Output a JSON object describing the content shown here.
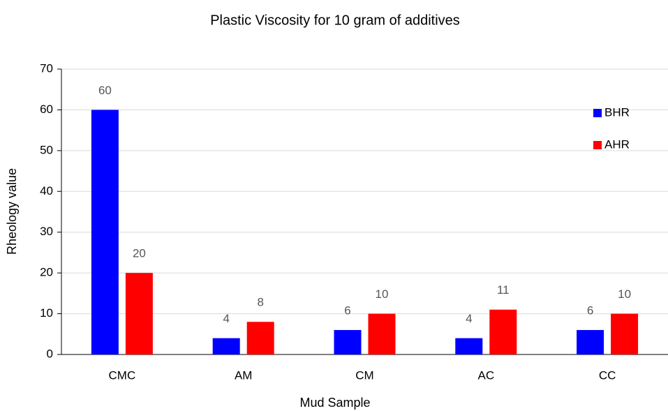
{
  "chart_data": {
    "type": "bar",
    "title": "Plastic Viscosity for 10 gram of additives",
    "x_label": "Mud Sample",
    "y_label": "Rheology value",
    "categories": [
      "CMC",
      "AM",
      "CM",
      "AC",
      "CC"
    ],
    "series": [
      {
        "name": "BHR",
        "color": "#0000ff",
        "values": [
          60,
          4,
          6,
          4,
          6
        ]
      },
      {
        "name": "AHR",
        "color": "#ff0000",
        "values": [
          20,
          8,
          10,
          11,
          10
        ]
      }
    ],
    "ylim": [
      0,
      70
    ],
    "yticks": [
      0,
      10,
      20,
      30,
      40,
      50,
      60,
      70
    ],
    "grid": true,
    "legend": "upper right",
    "data_labels": true
  }
}
